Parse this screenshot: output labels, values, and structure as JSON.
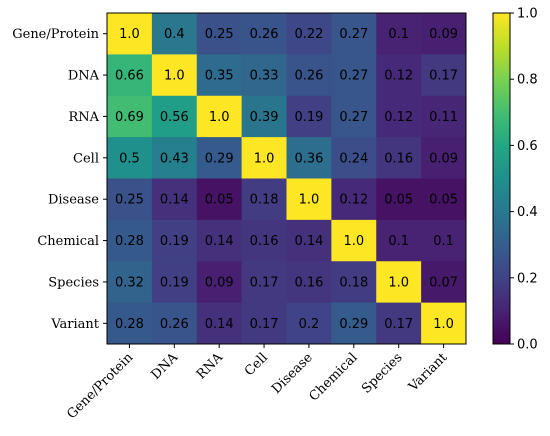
{
  "chart_data": {
    "type": "heatmap",
    "colormap": "viridis",
    "row_labels": [
      "Gene/Protein",
      "DNA",
      "RNA",
      "Cell",
      "Disease",
      "Chemical",
      "Species",
      "Variant"
    ],
    "col_labels": [
      "Gene/Protein",
      "DNA",
      "RNA",
      "Cell",
      "Disease",
      "Chemical",
      "Species",
      "Variant"
    ],
    "values": [
      [
        1.0,
        0.4,
        0.25,
        0.26,
        0.22,
        0.27,
        0.1,
        0.09
      ],
      [
        0.66,
        1.0,
        0.35,
        0.33,
        0.26,
        0.27,
        0.12,
        0.17
      ],
      [
        0.69,
        0.56,
        1.0,
        0.39,
        0.19,
        0.27,
        0.12,
        0.11
      ],
      [
        0.5,
        0.43,
        0.29,
        1.0,
        0.36,
        0.24,
        0.16,
        0.09
      ],
      [
        0.25,
        0.14,
        0.05,
        0.18,
        1.0,
        0.12,
        0.05,
        0.05
      ],
      [
        0.28,
        0.19,
        0.14,
        0.16,
        0.14,
        1.0,
        0.1,
        0.1
      ],
      [
        0.32,
        0.19,
        0.09,
        0.17,
        0.16,
        0.18,
        1.0,
        0.07
      ],
      [
        0.28,
        0.26,
        0.14,
        0.17,
        0.2,
        0.29,
        0.17,
        1.0
      ]
    ],
    "cell_text": [
      [
        "1.0",
        "0.4",
        "0.25",
        "0.26",
        "0.22",
        "0.27",
        "0.1",
        "0.09"
      ],
      [
        "0.66",
        "1.0",
        "0.35",
        "0.33",
        "0.26",
        "0.27",
        "0.12",
        "0.17"
      ],
      [
        "0.69",
        "0.56",
        "1.0",
        "0.39",
        "0.19",
        "0.27",
        "0.12",
        "0.11"
      ],
      [
        "0.5",
        "0.43",
        "0.29",
        "1.0",
        "0.36",
        "0.24",
        "0.16",
        "0.09"
      ],
      [
        "0.25",
        "0.14",
        "0.05",
        "0.18",
        "1.0",
        "0.12",
        "0.05",
        "0.05"
      ],
      [
        "0.28",
        "0.19",
        "0.14",
        "0.16",
        "0.14",
        "1.0",
        "0.1",
        "0.1"
      ],
      [
        "0.32",
        "0.19",
        "0.09",
        "0.17",
        "0.16",
        "0.18",
        "1.0",
        "0.07"
      ],
      [
        "0.28",
        "0.26",
        "0.14",
        "0.17",
        "0.2",
        "0.29",
        "0.17",
        "1.0"
      ]
    ],
    "colorbar": {
      "range": [
        0.0,
        1.0
      ],
      "ticks": [
        "0.0",
        "0.2",
        "0.4",
        "0.6",
        "0.8",
        "1.0"
      ],
      "tick_values": [
        0.0,
        0.2,
        0.4,
        0.6,
        0.8,
        1.0
      ]
    },
    "title": "",
    "xlabel": "",
    "ylabel": ""
  }
}
